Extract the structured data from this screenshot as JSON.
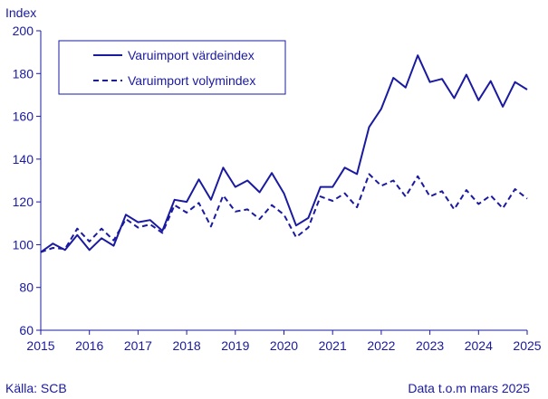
{
  "footer": {
    "source": "Källa: SCB",
    "data_note": "Data t.o.m mars 2025"
  },
  "chart_data": {
    "type": "line",
    "title": "",
    "xlabel": "",
    "ylabel": "Index",
    "ylim": [
      60,
      200
    ],
    "yticks": [
      60,
      80,
      100,
      120,
      140,
      160,
      180,
      200
    ],
    "xlim": [
      2015,
      2025.1
    ],
    "xticks": [
      2015,
      2016,
      2017,
      2018,
      2019,
      2020,
      2021,
      2022,
      2023,
      2024,
      2025
    ],
    "grid": false,
    "legend_position": "top-left",
    "line_color": "#1a1aa0",
    "series": [
      {
        "name": "Varuimport värdeindex",
        "style": "solid",
        "x": [
          2015.0,
          2015.25,
          2015.5,
          2015.75,
          2016.0,
          2016.25,
          2016.5,
          2016.75,
          2017.0,
          2017.25,
          2017.5,
          2017.75,
          2018.0,
          2018.25,
          2018.5,
          2018.75,
          2019.0,
          2019.25,
          2019.5,
          2019.75,
          2020.0,
          2020.25,
          2020.5,
          2020.75,
          2021.0,
          2021.25,
          2021.5,
          2021.75,
          2022.0,
          2022.25,
          2022.5,
          2022.75,
          2023.0,
          2023.25,
          2023.5,
          2023.75,
          2024.0,
          2024.25,
          2024.5,
          2024.75,
          2025.0
        ],
        "values": [
          96.5,
          100.5,
          97.5,
          104.5,
          97.5,
          103.0,
          99.5,
          114.0,
          110.5,
          111.5,
          106.5,
          121.0,
          120.0,
          130.5,
          121.0,
          136.0,
          127.0,
          130.0,
          124.5,
          133.5,
          124.0,
          109.0,
          112.5,
          127.0,
          127.0,
          136.0,
          133.0,
          155.0,
          163.5,
          178.0,
          173.5,
          188.5,
          176.0,
          177.5,
          168.5,
          179.5,
          167.5,
          176.5,
          164.5,
          176.0,
          172.5
        ]
      },
      {
        "name": "Varuimport volymindex",
        "style": "dashed",
        "x": [
          2015.0,
          2015.25,
          2015.5,
          2015.75,
          2016.0,
          2016.25,
          2016.5,
          2016.75,
          2017.0,
          2017.25,
          2017.5,
          2017.75,
          2018.0,
          2018.25,
          2018.5,
          2018.75,
          2019.0,
          2019.25,
          2019.5,
          2019.75,
          2020.0,
          2020.25,
          2020.5,
          2020.75,
          2021.0,
          2021.25,
          2021.5,
          2021.75,
          2022.0,
          2022.25,
          2022.5,
          2022.75,
          2023.0,
          2023.25,
          2023.5,
          2023.75,
          2024.0,
          2024.25,
          2024.5,
          2024.75,
          2025.0
        ],
        "values": [
          96.5,
          98.5,
          98.0,
          107.5,
          101.5,
          107.5,
          102.0,
          112.0,
          108.0,
          109.5,
          105.5,
          118.5,
          115.0,
          119.5,
          108.5,
          123.0,
          115.5,
          116.5,
          112.0,
          118.5,
          114.0,
          103.5,
          108.0,
          122.5,
          120.5,
          124.0,
          117.5,
          133.0,
          127.5,
          130.0,
          122.5,
          132.0,
          122.5,
          125.0,
          116.5,
          125.5,
          119.0,
          123.0,
          117.0,
          126.0,
          121.5
        ]
      }
    ]
  }
}
